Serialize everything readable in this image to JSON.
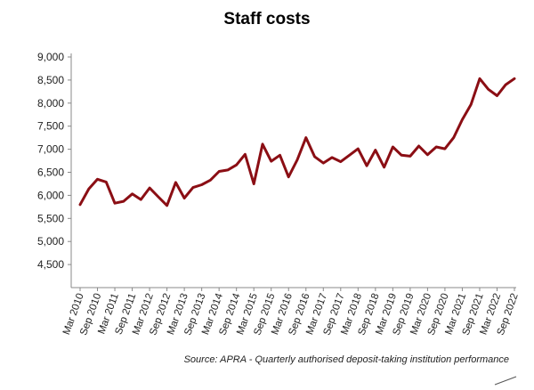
{
  "chart_data": {
    "type": "line",
    "title": "Staff costs",
    "xlabel": "",
    "ylabel": "",
    "ylim": [
      4000,
      9000
    ],
    "y_ticks": [
      "9,000",
      "8,500",
      "8,000",
      "7,500",
      "7,000",
      "6,500",
      "6,000",
      "5,500",
      "5,000",
      "4,500"
    ],
    "y_tick_values": [
      9000,
      8500,
      8000,
      7500,
      7000,
      6500,
      6000,
      5500,
      5000,
      4500
    ],
    "x_tick_labels": [
      "Mar 2010",
      "Sep 2010",
      "Mar 2011",
      "Sep 2011",
      "Mar 2012",
      "Sep 2012",
      "Mar 2013",
      "Sep 2013",
      "Mar 2014",
      "Sep 2014",
      "Mar 2015",
      "Sep 2015",
      "Mar 2016",
      "Sep 2016",
      "Mar 2017",
      "Sep 2017",
      "Mar 2018",
      "Sep 2018",
      "Mar 2019",
      "Sep 2019",
      "Mar 2020",
      "Sep 2020",
      "Mar 2021",
      "Sep 2021",
      "Mar 2022",
      "Sep 2022"
    ],
    "grid": false,
    "legend": "none",
    "line_color": "#8b0e14",
    "series": [
      {
        "x": [
          "Mar 2010",
          "Jun 2010",
          "Sep 2010",
          "Dec 2010",
          "Mar 2011",
          "Jun 2011",
          "Sep 2011",
          "Dec 2011",
          "Mar 2012",
          "Jun 2012",
          "Sep 2012",
          "Dec 2012",
          "Mar 2013",
          "Jun 2013",
          "Sep 2013",
          "Dec 2013",
          "Mar 2014",
          "Jun 2014",
          "Sep 2014",
          "Dec 2014",
          "Mar 2015",
          "Jun 2015",
          "Sep 2015",
          "Dec 2015",
          "Mar 2016",
          "Jun 2016",
          "Sep 2016",
          "Dec 2016",
          "Mar 2017",
          "Jun 2017",
          "Sep 2017",
          "Dec 2017",
          "Mar 2018",
          "Jun 2018",
          "Sep 2018",
          "Dec 2018",
          "Mar 2019",
          "Jun 2019",
          "Sep 2019",
          "Dec 2019",
          "Mar 2020",
          "Jun 2020",
          "Sep 2020",
          "Dec 2020",
          "Mar 2021",
          "Jun 2021",
          "Sep 2021",
          "Dec 2021",
          "Mar 2022",
          "Jun 2022",
          "Sep 2022"
        ],
        "values": [
          5800,
          6140,
          6350,
          6290,
          5830,
          5870,
          6030,
          5910,
          6160,
          5970,
          5780,
          6280,
          5940,
          6170,
          6230,
          6330,
          6520,
          6550,
          6660,
          6890,
          6250,
          7110,
          6740,
          6870,
          6400,
          6770,
          7250,
          6840,
          6700,
          6820,
          6730,
          6870,
          7010,
          6640,
          6980,
          6610,
          7050,
          6870,
          6850,
          7070,
          6880,
          7050,
          7010,
          7250,
          7640,
          7970,
          8530,
          8300,
          8160,
          8400,
          8530
        ]
      }
    ],
    "source_note": "Source: APRA - Quarterly authorised deposit-taking institution performance"
  }
}
